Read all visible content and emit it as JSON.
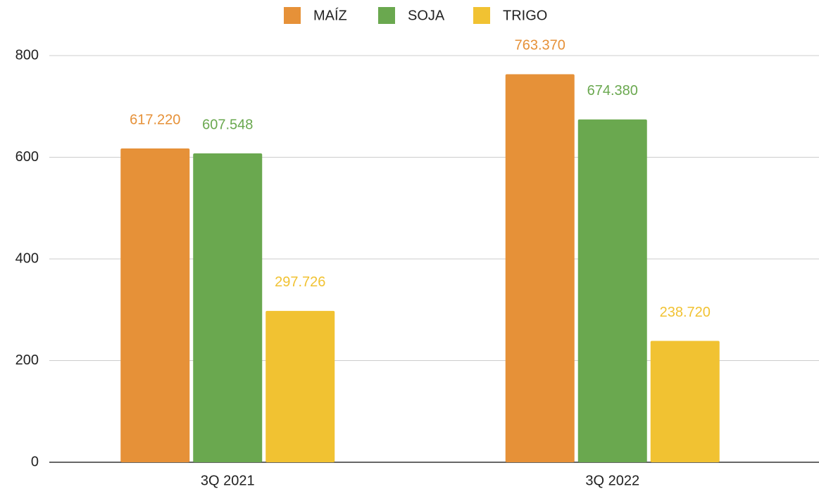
{
  "chart_data": {
    "type": "bar",
    "categories": [
      "3Q 2021",
      "3Q 2022"
    ],
    "series": [
      {
        "name": "MAÍZ",
        "color": "#e69138",
        "values": [
          617.22,
          763.37
        ],
        "value_labels": [
          "617.220",
          "763.370"
        ]
      },
      {
        "name": "SOJA",
        "color": "#6aa84f",
        "values": [
          607.548,
          674.38
        ],
        "value_labels": [
          "607.548",
          "674.380"
        ]
      },
      {
        "name": "TRIGO",
        "color": "#f1c232",
        "values": [
          297.726,
          238.72
        ],
        "value_labels": [
          "297.726",
          "238.720"
        ]
      }
    ],
    "ylim": [
      0,
      800
    ],
    "yticks": [
      0,
      200,
      400,
      600,
      800
    ],
    "grid": true,
    "legend": "top"
  }
}
